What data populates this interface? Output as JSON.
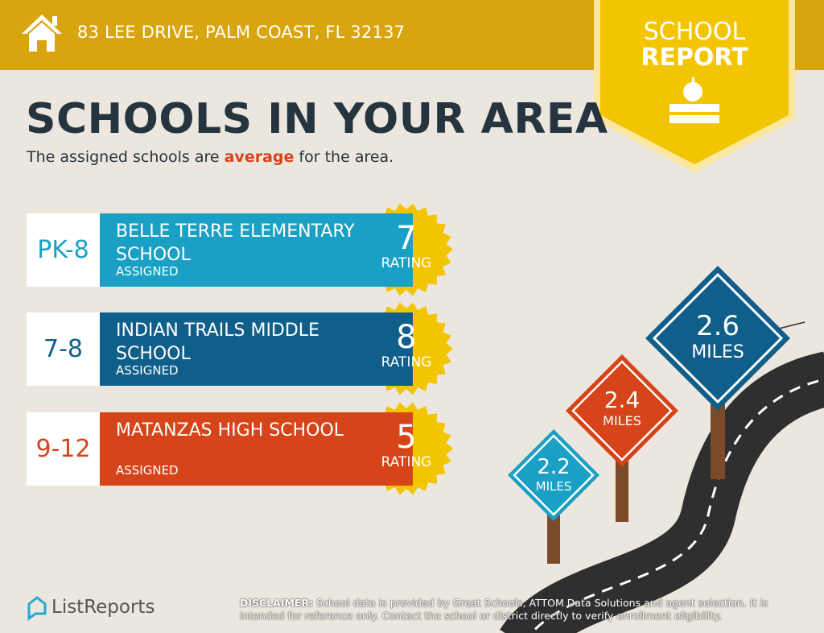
{
  "header": {
    "address": "83 LEE DRIVE, PALM COAST, FL 32137"
  },
  "badge": {
    "line1": "SCHOOL",
    "line2": "REPORT"
  },
  "title": "SCHOOLS IN YOUR AREA",
  "subtitle": {
    "before": "The assigned schools are ",
    "emphasis": "average",
    "after": " for the area."
  },
  "schools": [
    {
      "grades": "PK-8",
      "name": "BELLE TERRE ELEMENTARY SCHOOL",
      "status": "ASSIGNED",
      "rating": "7",
      "rating_label": "RATING",
      "color": "#1aa0c4"
    },
    {
      "grades": "7-8",
      "name": "INDIAN TRAILS MIDDLE SCHOOL",
      "status": "ASSIGNED",
      "rating": "8",
      "rating_label": "RATING",
      "color": "#0f5f8a"
    },
    {
      "grades": "9-12",
      "name": "MATANZAS HIGH SCHOOL",
      "status": "ASSIGNED",
      "rating": "5",
      "rating_label": "RATING",
      "color": "#d6441a"
    }
  ],
  "signs": [
    {
      "distance": "2.2",
      "unit": "MILES"
    },
    {
      "distance": "2.4",
      "unit": "MILES"
    },
    {
      "distance": "2.6",
      "unit": "MILES"
    }
  ],
  "footer": {
    "logo": "ListReports",
    "disclaimer_label": "DISCLAIMER:",
    "disclaimer_text": "School data is provided by Great Schools, ATTOM Data Solutions and agent selection. It is intended for reference only. Contact the school or district directly to verify enrollment eligibility."
  }
}
